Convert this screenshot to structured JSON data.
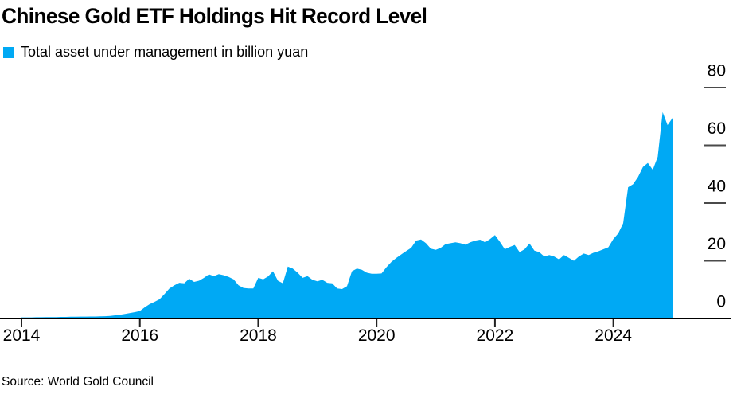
{
  "chart_data": {
    "type": "area",
    "title": "Chinese Gold ETF Holdings Hit Record Level",
    "series_name": "Total asset under management in billion yuan",
    "unit": "billion yuan",
    "color": "#00A9F4",
    "source": "Source: World Gold Council",
    "legend_position": "top-left",
    "y_axis_side": "right",
    "grid": "off",
    "ylim": [
      0,
      80
    ],
    "y_ticks": [
      0,
      20,
      40,
      60,
      80
    ],
    "x_ticks": [
      2014,
      2016,
      2018,
      2020,
      2022,
      2024
    ],
    "x_range_years": [
      2014.0,
      2025.0
    ],
    "frequency": "monthly",
    "start": "2014-01",
    "end": "2025-01",
    "values": [
      0.4,
      0.4,
      0.4,
      0.45,
      0.45,
      0.5,
      0.5,
      0.5,
      0.55,
      0.55,
      0.6,
      0.6,
      0.65,
      0.65,
      0.7,
      0.7,
      0.75,
      0.8,
      0.9,
      1.1,
      1.3,
      1.6,
      1.9,
      2.2,
      2.6,
      3.9,
      5.0,
      5.8,
      6.7,
      8.5,
      10.4,
      11.5,
      12.4,
      12.2,
      13.8,
      12.7,
      13.1,
      14.1,
      15.3,
      14.7,
      15.4,
      15.0,
      14.4,
      13.6,
      11.5,
      10.6,
      10.4,
      10.4,
      14.1,
      13.6,
      14.6,
      16.4,
      13.1,
      12.2,
      18.0,
      17.3,
      15.9,
      14.1,
      14.7,
      13.4,
      12.9,
      13.4,
      12.4,
      12.2,
      10.4,
      10.2,
      11.2,
      16.4,
      17.3,
      16.9,
      15.9,
      15.5,
      15.5,
      15.6,
      17.8,
      19.6,
      21.0,
      22.2,
      23.4,
      24.5,
      27.0,
      27.4,
      26.1,
      24.2,
      23.8,
      24.5,
      25.8,
      26.1,
      26.4,
      26.1,
      25.6,
      26.4,
      27.0,
      27.3,
      26.4,
      27.5,
      28.9,
      26.6,
      24.0,
      24.8,
      25.5,
      23.0,
      24.0,
      26.0,
      23.5,
      23.0,
      21.5,
      22.0,
      21.5,
      20.5,
      22.0,
      21.0,
      20.0,
      21.5,
      22.5,
      22.0,
      22.8,
      23.3,
      24.0,
      24.7,
      27.5,
      29.5,
      33.0,
      45.5,
      46.5,
      49.0,
      52.5,
      53.9,
      51.5,
      56.0,
      71.5,
      67.0,
      69.5
    ]
  }
}
